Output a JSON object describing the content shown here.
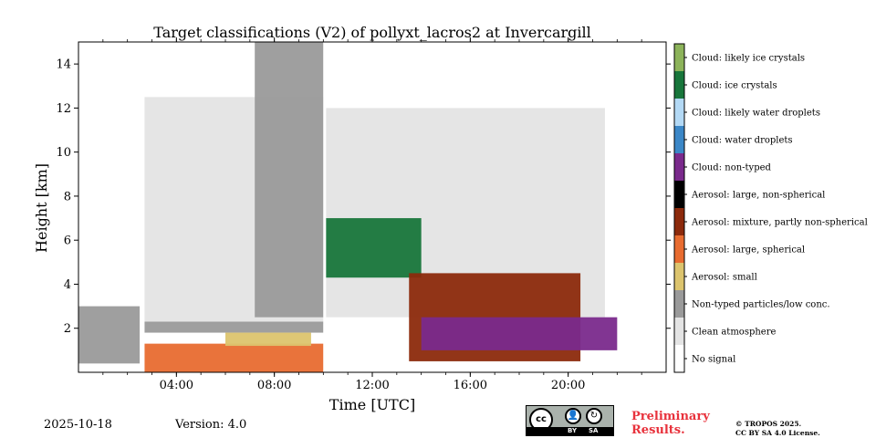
{
  "chart_data": {
    "type": "heatmap",
    "title": "Target classifications (V2) of pollyxt_lacros2 at Invercargill",
    "xlabel": "Time [UTC]",
    "ylabel": "Height [km]",
    "x_range_hours": [
      0,
      24
    ],
    "ylim": [
      0,
      15
    ],
    "x_ticks": [
      {
        "value": 4,
        "label": "04:00"
      },
      {
        "value": 8,
        "label": "08:00"
      },
      {
        "value": 12,
        "label": "12:00"
      },
      {
        "value": 16,
        "label": "16:00"
      },
      {
        "value": 20,
        "label": "20:00"
      }
    ],
    "y_ticks": [
      {
        "value": 2,
        "label": "2"
      },
      {
        "value": 4,
        "label": "4"
      },
      {
        "value": 6,
        "label": "6"
      },
      {
        "value": 8,
        "label": "8"
      },
      {
        "value": 10,
        "label": "10"
      },
      {
        "value": 12,
        "label": "12"
      },
      {
        "value": 14,
        "label": "14"
      }
    ],
    "classes": [
      {
        "label": "Cloud: likely ice crystals",
        "color": "#8cb35a"
      },
      {
        "label": "Cloud: ice crystals",
        "color": "#18763b"
      },
      {
        "label": "Cloud: likely water droplets",
        "color": "#b3d9f5"
      },
      {
        "label": "Cloud: water droplets",
        "color": "#3b87c7"
      },
      {
        "label": "Cloud: non-typed",
        "color": "#7a2a8c"
      },
      {
        "label": "Aerosol: large, non-spherical",
        "color": "#000000"
      },
      {
        "label": "Aerosol: mixture, partly non-spherical",
        "color": "#8c2a0c"
      },
      {
        "label": "Aerosol: large, spherical",
        "color": "#e86c30"
      },
      {
        "label": "Aerosol: small",
        "color": "#dcc46e"
      },
      {
        "label": "Non-typed particles/low conc.",
        "color": "#9a9a9a"
      },
      {
        "label": "Clean atmosphere",
        "color": "#e4e4e4"
      },
      {
        "label": "No signal",
        "color": "#ffffff"
      }
    ],
    "features": [
      {
        "desc": "no-signal gap",
        "t_start": 0.0,
        "t_end": 24.0,
        "h_start": 0,
        "h_end": 15,
        "class": "No signal"
      },
      {
        "desc": "clean atmosphere dome",
        "t_start": 2.7,
        "t_end": 10.0,
        "h_start": 2.2,
        "h_end": 12.5,
        "class": "Clean atmosphere"
      },
      {
        "desc": "clean atmosphere afternoon",
        "t_start": 10.1,
        "t_end": 21.5,
        "h_start": 2.5,
        "h_end": 12.0,
        "class": "Clean atmosphere"
      },
      {
        "desc": "non-typed upper noise",
        "t_start": 7.2,
        "t_end": 10.0,
        "h_start": 2.5,
        "h_end": 15.0,
        "class": "Non-typed particles/low conc."
      },
      {
        "desc": "non-typed layer morning",
        "t_start": 0.0,
        "t_end": 2.5,
        "h_start": 0.4,
        "h_end": 3.0,
        "class": "Non-typed particles/low conc."
      },
      {
        "desc": "non-typed boundary layer",
        "t_start": 2.7,
        "t_end": 10.0,
        "h_start": 1.8,
        "h_end": 2.3,
        "class": "Non-typed particles/low conc."
      },
      {
        "desc": "large spherical aerosol layer",
        "t_start": 2.7,
        "t_end": 10.0,
        "h_start": 0.0,
        "h_end": 1.3,
        "class": "Aerosol: large, spherical"
      },
      {
        "desc": "small aerosol band",
        "t_start": 6.0,
        "t_end": 9.5,
        "h_start": 1.2,
        "h_end": 1.8,
        "class": "Aerosol: small"
      },
      {
        "desc": "ice cloud band",
        "t_start": 10.1,
        "t_end": 14.0,
        "h_start": 4.3,
        "h_end": 7.0,
        "class": "Cloud: ice crystals"
      },
      {
        "desc": "aerosol mixture under cloud",
        "t_start": 13.5,
        "t_end": 20.5,
        "h_start": 0.5,
        "h_end": 4.5,
        "class": "Aerosol: mixture, partly non-spherical"
      },
      {
        "desc": "non-typed cloud layer",
        "t_start": 14.0,
        "t_end": 22.0,
        "h_start": 1.0,
        "h_end": 2.5,
        "class": "Cloud: non-typed"
      }
    ]
  },
  "footer": {
    "date": "2025-10-18",
    "version": "Version: 4.0",
    "preliminary_line1": "Preliminary",
    "preliminary_line2": "Results.",
    "license_line1": "© TROPOS 2025.",
    "license_line2": "CC BY SA 4.0 License.",
    "badge_cc": "cc",
    "badge_by": "BY",
    "badge_sa": "SA"
  }
}
